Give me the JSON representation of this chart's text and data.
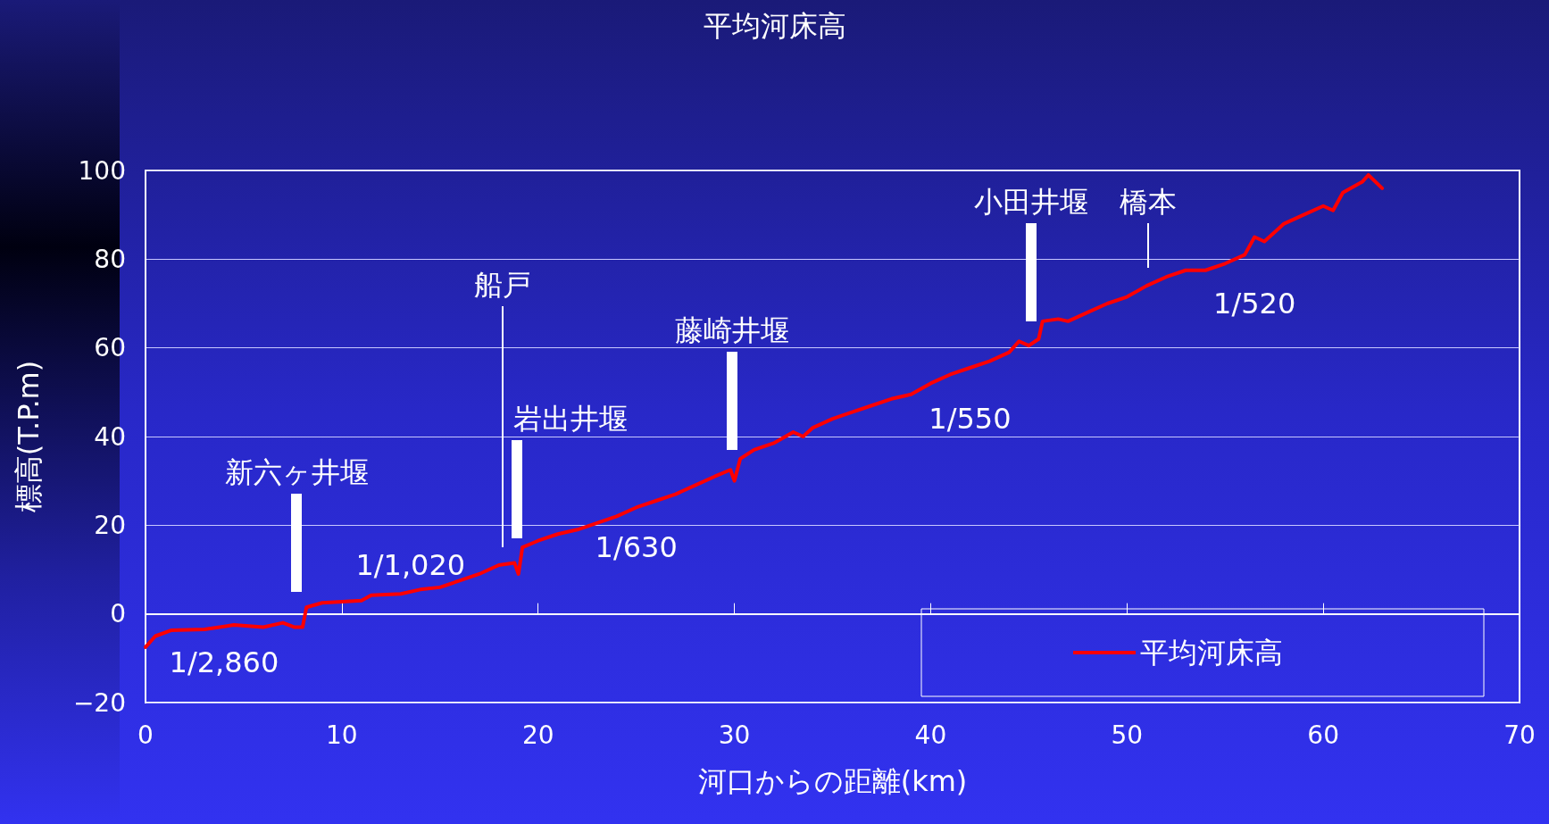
{
  "chart_data": {
    "type": "line",
    "title": "平均河床高",
    "xlabel": "河口からの距離(km)",
    "ylabel": "標高(T.P.m)",
    "xlim": [
      0,
      70
    ],
    "xticks": [
      0,
      10,
      20,
      30,
      40,
      50,
      60,
      70
    ],
    "ylim": [
      -20,
      100
    ],
    "yticks": [
      -20,
      0,
      20,
      40,
      60,
      80,
      100
    ],
    "grid": "y",
    "legend": "bottom right",
    "marker": "none",
    "line_style": "solid",
    "series": [
      {
        "name": "平均河床高",
        "color": "#ff0000",
        "x": [
          0,
          0.5,
          1.3,
          3,
          4.5,
          6,
          7,
          7.6,
          8.0,
          8.2,
          9,
          11,
          11.5,
          13,
          14,
          15,
          16,
          17,
          18,
          18.8,
          19,
          19.2,
          20,
          21,
          22,
          23,
          24,
          25,
          26,
          27,
          28,
          29,
          29.8,
          30,
          30.3,
          31,
          32,
          33,
          33.5,
          34,
          35,
          36,
          37,
          38,
          39,
          40,
          41,
          42,
          43,
          44,
          44.5,
          45,
          45.5,
          45.7,
          46.5,
          47,
          48,
          49,
          50,
          51,
          52,
          53,
          54,
          55,
          56,
          56.5,
          57,
          58,
          59,
          60,
          60.5,
          61,
          62,
          62.3,
          63
        ],
        "values": [
          -7.5,
          -5,
          -3.7,
          -3.5,
          -2.5,
          -3,
          -2,
          -3,
          -3,
          1.5,
          2.5,
          3,
          4.2,
          4.5,
          5.5,
          6,
          7.5,
          9,
          11,
          11.5,
          9,
          15,
          16.5,
          18,
          19,
          20.5,
          22,
          24,
          25.5,
          27,
          29,
          31,
          32.5,
          30,
          35,
          37,
          38.5,
          41,
          40,
          42,
          44,
          45.5,
          47,
          48.5,
          49.5,
          52,
          54,
          55.5,
          57,
          59,
          61.5,
          60.5,
          62,
          66,
          66.5,
          66,
          68,
          70,
          71.5,
          74,
          76,
          77.5,
          77.5,
          79,
          81,
          85,
          84,
          88,
          90,
          92,
          91,
          95,
          97.5,
          99,
          96
        ]
      }
    ],
    "annotations": [
      "新六ヶ井堰",
      "船戸",
      "岩出井堰",
      "藤崎井堰",
      "小田井堰",
      "橋本",
      "1/2,860",
      "1/1,020",
      "1/630",
      "1/550",
      "1/520"
    ]
  }
}
